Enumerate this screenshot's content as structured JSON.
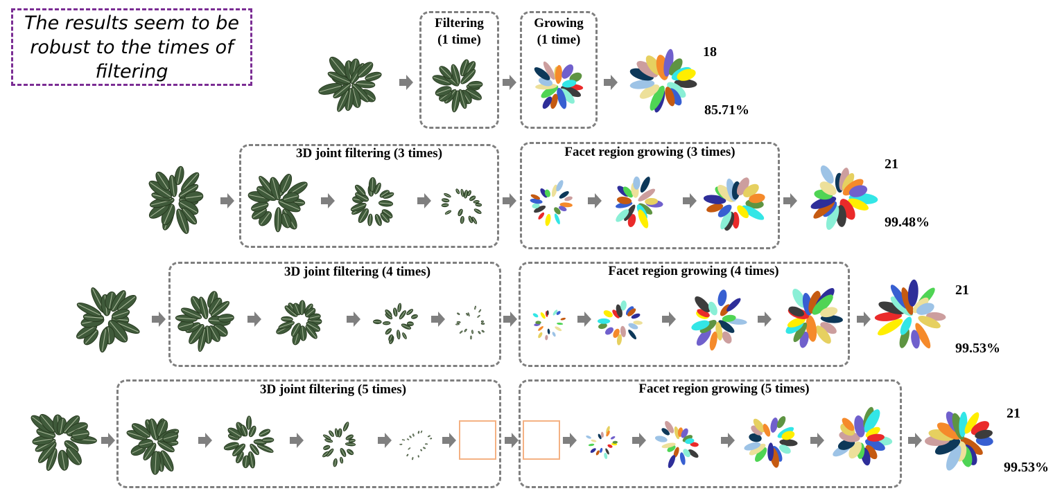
{
  "note": "The results seem to be robust to the times of filtering",
  "rows": [
    {
      "filter_title_line1": "Filtering",
      "filter_title_line2": "(1 time)",
      "grow_title_line1": "Growing",
      "grow_title_line2": "(1 time)",
      "count": "18",
      "accuracy": "85.71%"
    },
    {
      "filter_title": "3D joint filtering (3 times)",
      "grow_title": "Facet region growing (3 times)",
      "count": "21",
      "accuracy": "99.48%"
    },
    {
      "filter_title": "3D joint filtering (4 times)",
      "grow_title": "Facet region growing (4 times)",
      "count": "21",
      "accuracy": "99.53%"
    },
    {
      "filter_title": "3D joint filtering (5 times)",
      "grow_title": "Facet region growing (5 times)",
      "count": "21",
      "accuracy": "99.53%"
    }
  ],
  "colors": {
    "note_border": "#7b2d94",
    "box_border": "#7f7f7f",
    "arrow": "#7f7f7f",
    "empty_frame": "#f4b183",
    "leaf_green": "#3f5a3a",
    "segment_palette": [
      "#c55a11",
      "#2e2e99",
      "#4fd454",
      "#ede09a",
      "#9dc3e6",
      "#0d3859",
      "#cc9e9e",
      "#e6d060",
      "#f58a2b",
      "#7060cc",
      "#5e9442",
      "#33e6e6",
      "#ffee00",
      "#ea2a2a",
      "#3c3c3c",
      "#8aefd6",
      "#375fd1"
    ]
  }
}
